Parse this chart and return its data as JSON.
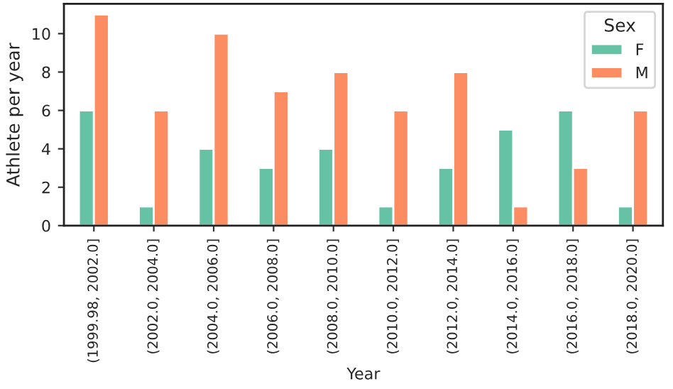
{
  "chart_data": {
    "type": "bar",
    "xlabel": "Year",
    "ylabel": "Athlete per year",
    "legend_title": "Sex",
    "legend": "top right",
    "categories": [
      "(1999.98, 2002.0]",
      "(2002.0, 2004.0]",
      "(2004.0, 2006.0]",
      "(2006.0, 2008.0]",
      "(2008.0, 2010.0]",
      "(2010.0, 2012.0]",
      "(2012.0, 2014.0]",
      "(2014.0, 2016.0]",
      "(2016.0, 2018.0]",
      "(2018.0, 2020.0]"
    ],
    "series": [
      {
        "name": "F",
        "color": "#66c2a5",
        "values": [
          6,
          1,
          4,
          3,
          4,
          1,
          3,
          5,
          6,
          1
        ]
      },
      {
        "name": "M",
        "color": "#fc8d62",
        "values": [
          11,
          6,
          10,
          7,
          8,
          6,
          8,
          1,
          3,
          6
        ]
      }
    ],
    "ylim": [
      0,
      11.55
    ],
    "yticks": [
      0,
      2,
      4,
      6,
      8,
      10
    ],
    "grid": false
  }
}
